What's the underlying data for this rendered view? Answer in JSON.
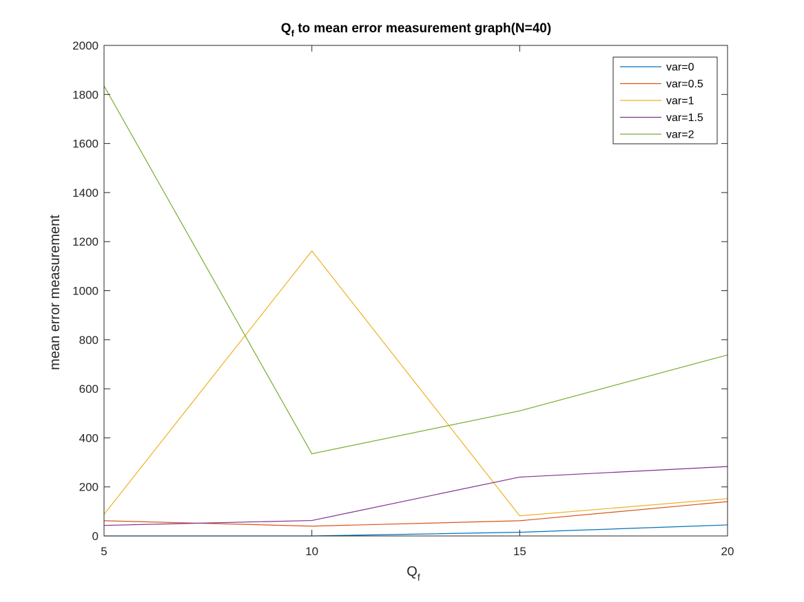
{
  "chart_data": {
    "type": "line",
    "title": {
      "main": "Q",
      "sub": "f",
      "rest": " to mean error measurement graph(N=40)"
    },
    "xlabel": {
      "main": "Q",
      "sub": "f"
    },
    "ylabel": "mean error measurement",
    "x": [
      5,
      10,
      15,
      20
    ],
    "xlim": [
      5,
      20
    ],
    "ylim": [
      0,
      2000
    ],
    "xticks": [
      5,
      10,
      15,
      20
    ],
    "yticks": [
      0,
      200,
      400,
      600,
      800,
      1000,
      1200,
      1400,
      1600,
      1800,
      2000
    ],
    "grid": false,
    "legend_position": "top-right",
    "series": [
      {
        "name": "var=0",
        "color": "#0072BD",
        "values": [
          0,
          0,
          15,
          45
        ]
      },
      {
        "name": "var=0.5",
        "color": "#D95319",
        "values": [
          62,
          40,
          62,
          140
        ]
      },
      {
        "name": "var=1",
        "color": "#EDB120",
        "values": [
          88,
          1162,
          82,
          152
        ]
      },
      {
        "name": "var=1.5",
        "color": "#7E2F8E",
        "values": [
          43,
          63,
          240,
          283
        ]
      },
      {
        "name": "var=2",
        "color": "#77AC30",
        "values": [
          1835,
          335,
          510,
          738
        ]
      }
    ]
  }
}
